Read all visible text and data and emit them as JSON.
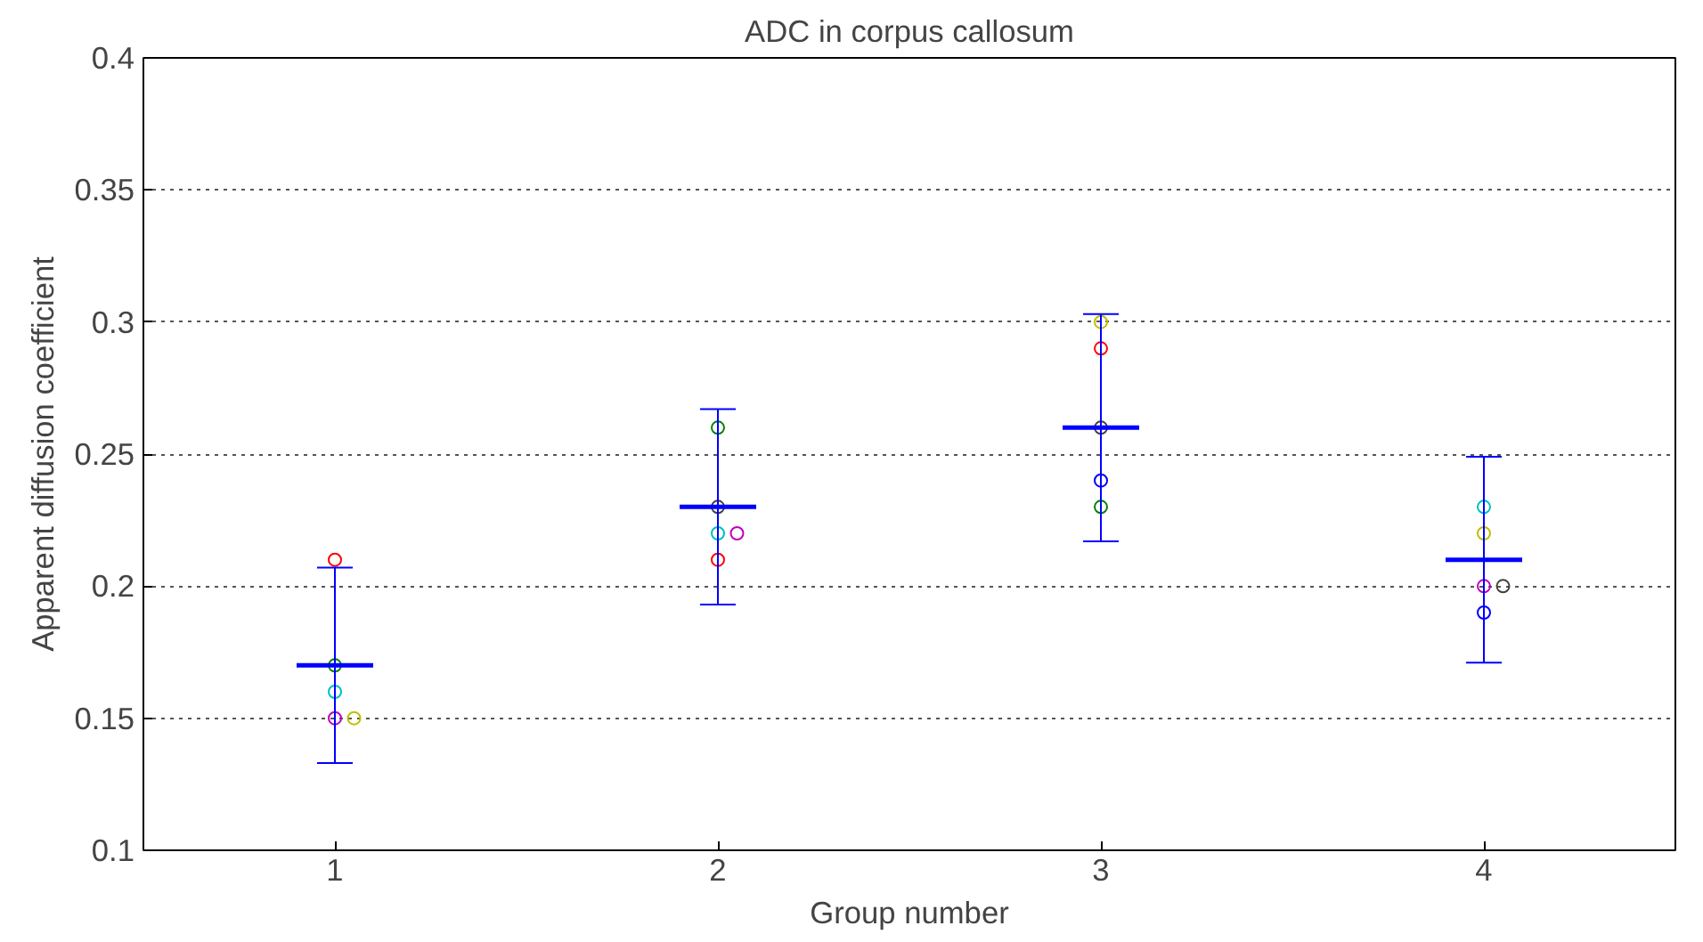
{
  "chart_data": {
    "type": "scatter",
    "title": "ADC in corpus callosum",
    "xlabel": "Group number",
    "ylabel": "Apparent diffusion coefficient",
    "xlim": [
      0.5,
      4.5
    ],
    "xticks": [
      1,
      2,
      3,
      4
    ],
    "ylim": [
      0.1,
      0.4
    ],
    "yticks": [
      0.1,
      0.15,
      0.2,
      0.25,
      0.3,
      0.35,
      0.4
    ],
    "grid": "y",
    "series": [
      {
        "marker": "circle",
        "x": [
          1,
          1,
          1,
          1,
          1.05,
          2,
          2,
          2,
          2.05,
          2,
          3,
          3,
          3,
          3,
          3,
          4,
          4,
          4,
          4.05,
          4
        ],
        "values": [
          0.21,
          0.17,
          0.16,
          0.15,
          0.15,
          0.26,
          0.23,
          0.22,
          0.22,
          0.21,
          0.3,
          0.29,
          0.26,
          0.24,
          0.23,
          0.23,
          0.22,
          0.2,
          0.2,
          0.19
        ],
        "colors": [
          "#ff0000",
          "#008000",
          "#00bfbf",
          "#bf00bf",
          "#bfbf00",
          "#008000",
          "#404040",
          "#00bfbf",
          "#bf00bf",
          "#ff0000",
          "#bfbf00",
          "#ff0000",
          "#404040",
          "#0000ff",
          "#008000",
          "#00bfbf",
          "#bfbf00",
          "#bf00bf",
          "#404040",
          "#0000ff"
        ]
      },
      {
        "type": "line",
        "color": "#0000ff",
        "x": [
          0.9,
          1,
          1.1
        ],
        "values": [
          0.17,
          0.17,
          0.17
        ],
        "errors": [
          null,
          0.037,
          null
        ]
      },
      {
        "type": "line",
        "color": "#0000ff",
        "x": [
          1.9,
          2,
          2.1
        ],
        "values": [
          0.23,
          0.23,
          0.23
        ],
        "errors": [
          null,
          0.037,
          null
        ]
      },
      {
        "type": "line",
        "color": "#0000ff",
        "x": [
          2.9,
          3,
          3.1
        ],
        "values": [
          0.26,
          0.26,
          0.26
        ],
        "errors": [
          null,
          0.043,
          null
        ]
      },
      {
        "type": "line",
        "color": "#0000ff",
        "x": [
          3.9,
          4,
          4.1
        ],
        "values": [
          0.21,
          0.21,
          0.21
        ],
        "errors": [
          null,
          0.039,
          null
        ]
      }
    ]
  }
}
